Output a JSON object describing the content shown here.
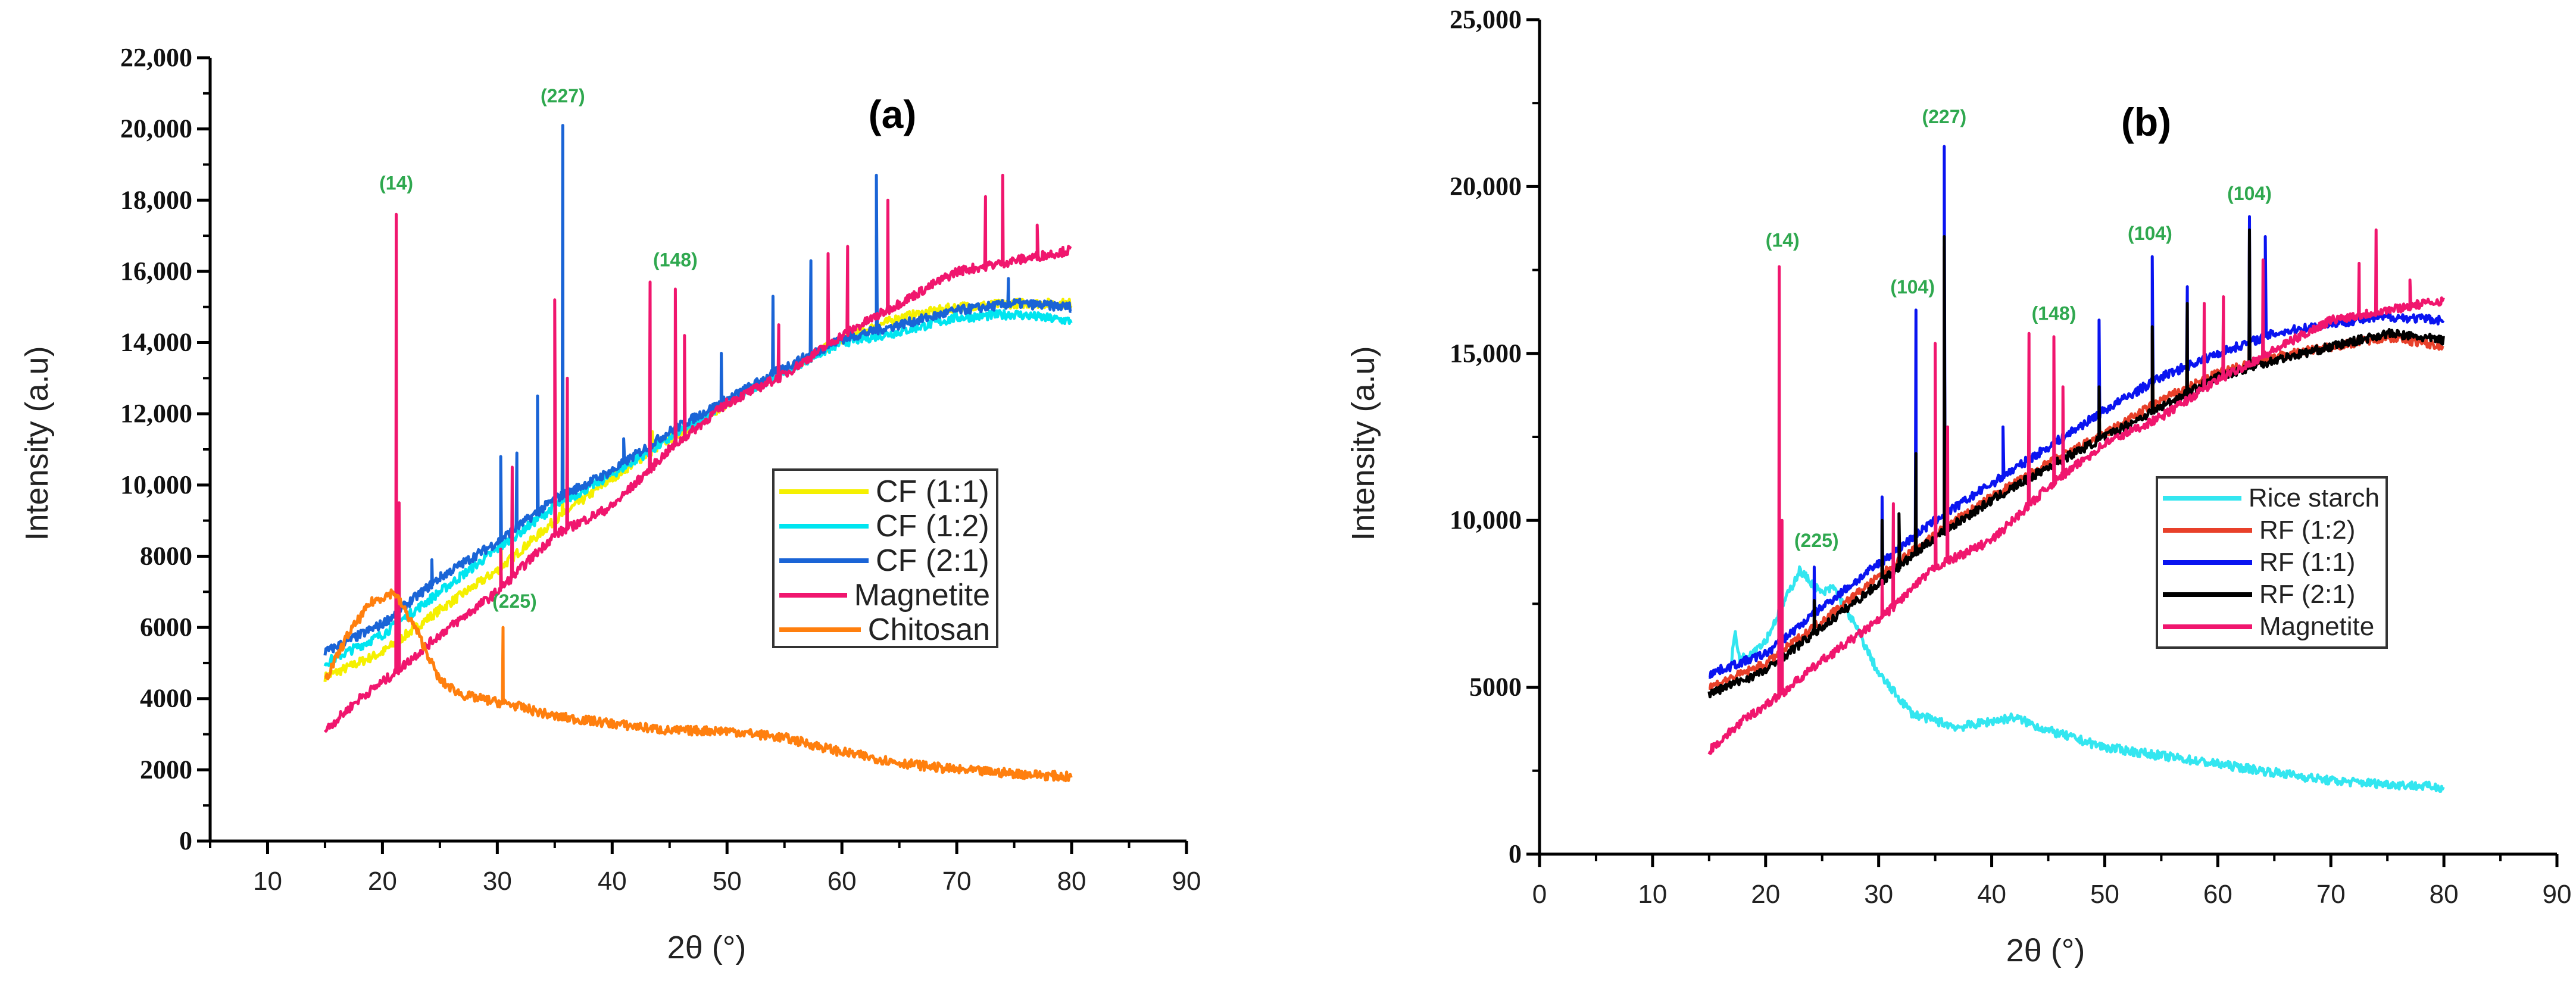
{
  "chart_data": [
    {
      "type": "line",
      "title": "(a)",
      "xlabel": "2θ (°)",
      "ylabel": "Intensity (a.u)",
      "xlim": [
        5,
        90
      ],
      "ylim": [
        0,
        22000
      ],
      "grid": false,
      "legend_placement": "center-right",
      "xticks": [
        10,
        20,
        30,
        40,
        50,
        60,
        70,
        80,
        90
      ],
      "xtick_labels": [
        "10",
        "20",
        "30",
        "40",
        "50",
        "60",
        "70",
        "80",
        "90"
      ],
      "yticks": [
        0,
        2000,
        4000,
        6000,
        8000,
        10000,
        12000,
        14000,
        16000,
        18000,
        20000,
        22000
      ],
      "ytick_labels": [
        "0",
        "2000",
        "4000",
        "6000",
        "8000",
        "10,000",
        "12,000",
        "14,000",
        "16,000",
        "18,000",
        "20,000",
        "22,000"
      ],
      "series": [
        {
          "name": "CF (1:1)",
          "color": "#f5f000",
          "points": [
            [
              15,
              4600
            ],
            [
              20,
              5300
            ],
            [
              25,
              6500
            ],
            [
              30,
              7600
            ],
            [
              35,
              9000
            ],
            [
              40,
              10200
            ],
            [
              45,
              11300
            ],
            [
              50,
              12300
            ],
            [
              55,
              13200
            ],
            [
              60,
              14100
            ],
            [
              65,
              14700
            ],
            [
              70,
              15000
            ],
            [
              75,
              15100
            ],
            [
              80,
              15100
            ]
          ],
          "peaks": [
            [
              30.3,
              9500
            ],
            [
              35.7,
              14000
            ],
            [
              43.5,
              11500
            ],
            [
              63,
              16000
            ]
          ]
        },
        {
          "name": "CF (1:2)",
          "color": "#00e5f0",
          "points": [
            [
              15,
              5000
            ],
            [
              20,
              5800
            ],
            [
              25,
              7000
            ],
            [
              30,
              8200
            ],
            [
              35,
              9400
            ],
            [
              40,
              10300
            ],
            [
              45,
              11300
            ],
            [
              50,
              12300
            ],
            [
              55,
              13200
            ],
            [
              60,
              14000
            ],
            [
              65,
              14300
            ],
            [
              70,
              14700
            ],
            [
              75,
              14800
            ],
            [
              80,
              14600
            ]
          ],
          "peaks": [
            [
              30.3,
              10000
            ],
            [
              35.7,
              15000
            ],
            [
              63,
              17000
            ]
          ]
        },
        {
          "name": "CF (2:1)",
          "color": "#1a64d6",
          "points": [
            [
              15,
              5300
            ],
            [
              20,
              6100
            ],
            [
              25,
              7400
            ],
            [
              30,
              8400
            ],
            [
              35,
              9600
            ],
            [
              40,
              10400
            ],
            [
              45,
              11500
            ],
            [
              50,
              12400
            ],
            [
              55,
              13300
            ],
            [
              60,
              14100
            ],
            [
              65,
              14500
            ],
            [
              70,
              14900
            ],
            [
              75,
              15100
            ],
            [
              80,
              15000
            ]
          ],
          "peaks": [
            [
              24.3,
              7900
            ],
            [
              30.3,
              10800
            ],
            [
              31.7,
              10900
            ],
            [
              33.5,
              12500
            ],
            [
              35.7,
              20100
            ],
            [
              41,
              11300
            ],
            [
              49.5,
              13700
            ],
            [
              54,
              15300
            ],
            [
              57.3,
              16300
            ],
            [
              63,
              18700
            ],
            [
              74.5,
              15800
            ]
          ]
        },
        {
          "name": "Magnetite",
          "color": "#f0166e",
          "points": [
            [
              15,
              3100
            ],
            [
              18,
              4000
            ],
            [
              21,
              4700
            ],
            [
              25,
              5800
            ],
            [
              30,
              7000
            ],
            [
              35,
              8600
            ],
            [
              40,
              9400
            ],
            [
              45,
              11000
            ],
            [
              50,
              12300
            ],
            [
              55,
              13100
            ],
            [
              60,
              14200
            ],
            [
              65,
              15100
            ],
            [
              70,
              16000
            ],
            [
              75,
              16300
            ],
            [
              80,
              16600
            ]
          ],
          "peaks": [
            [
              21.2,
              17600
            ],
            [
              21.45,
              9500
            ],
            [
              30.3,
              8200
            ],
            [
              31.3,
              10500
            ],
            [
              35,
              15200
            ],
            [
              36.1,
              13000
            ],
            [
              43.3,
              15700
            ],
            [
              45.5,
              15500
            ],
            [
              46.3,
              14200
            ],
            [
              54.5,
              14500
            ],
            [
              58.8,
              16500
            ],
            [
              60.5,
              16700
            ],
            [
              64,
              18000
            ],
            [
              72.5,
              18100
            ],
            [
              74,
              18700
            ],
            [
              77,
              17300
            ]
          ]
        },
        {
          "name": "Chitosan",
          "color": "#ff7f0e",
          "points": [
            [
              15,
              4500
            ],
            [
              17,
              5800
            ],
            [
              19,
              6700
            ],
            [
              21,
              7000
            ],
            [
              23,
              5900
            ],
            [
              25,
              4500
            ],
            [
              27,
              4100
            ],
            [
              30,
              3900
            ],
            [
              31,
              3850
            ],
            [
              35,
              3500
            ],
            [
              40,
              3300
            ],
            [
              45,
              3100
            ],
            [
              50,
              3100
            ],
            [
              55,
              2900
            ],
            [
              60,
              2500
            ],
            [
              65,
              2200
            ],
            [
              70,
              2000
            ],
            [
              75,
              1900
            ],
            [
              80,
              1800
            ]
          ],
          "peaks": [
            [
              30.5,
              6000
            ]
          ]
        }
      ],
      "annotations": [
        {
          "text": "(14)",
          "x": 21.2,
          "y": 18300
        },
        {
          "text": "(227)",
          "x": 35.7,
          "y": 20750
        },
        {
          "text": "(148)",
          "x": 45.5,
          "y": 16140
        },
        {
          "text": "(225)",
          "x": 31.5,
          "y": 6550
        }
      ]
    },
    {
      "type": "line",
      "title": "(b)",
      "xlabel": "2θ (°)",
      "ylabel": "Intensity  (a.u)",
      "xlim": [
        0,
        90
      ],
      "ylim": [
        0,
        25000
      ],
      "grid": false,
      "legend_placement": "center-right",
      "xticks": [
        0,
        10,
        20,
        30,
        40,
        50,
        60,
        70,
        80,
        90
      ],
      "xtick_labels": [
        "0",
        "10",
        "20",
        "30",
        "40",
        "50",
        "60",
        "70",
        "80",
        "90"
      ],
      "yticks": [
        0,
        5000,
        10000,
        15000,
        20000,
        25000
      ],
      "ytick_labels": [
        "0",
        "5000",
        "10,000",
        "15,000",
        "20,000",
        "25,000"
      ],
      "series": [
        {
          "name": "Rice starch",
          "color": "#33e6f0",
          "points": [
            [
              17,
              5800
            ],
            [
              17.3,
              6700
            ],
            [
              17.7,
              5800
            ],
            [
              20,
              6400
            ],
            [
              23,
              8500
            ],
            [
              25,
              7800
            ],
            [
              26,
              8000
            ],
            [
              28,
              6800
            ],
            [
              30,
              5400
            ],
            [
              33,
              4200
            ],
            [
              37,
              3800
            ],
            [
              42,
              4100
            ],
            [
              45,
              3700
            ],
            [
              50,
              3200
            ],
            [
              60,
              2700
            ],
            [
              70,
              2200
            ],
            [
              80,
              2000
            ]
          ],
          "peaks": []
        },
        {
          "name": "RF (1:2)",
          "color": "#e8402a",
          "points": [
            [
              15,
              5000
            ],
            [
              20,
              5700
            ],
            [
              25,
              7000
            ],
            [
              30,
              8300
            ],
            [
              35,
              9600
            ],
            [
              40,
              10700
            ],
            [
              45,
              11700
            ],
            [
              50,
              12600
            ],
            [
              55,
              13600
            ],
            [
              60,
              14400
            ],
            [
              65,
              14900
            ],
            [
              70,
              15200
            ],
            [
              75,
              15500
            ],
            [
              80,
              15200
            ]
          ],
          "peaks": [
            [
              30.3,
              9900
            ],
            [
              33.3,
              11800
            ],
            [
              35.8,
              18200
            ],
            [
              54.2,
              15600
            ],
            [
              57.3,
              16300
            ],
            [
              62.8,
              18500
            ]
          ]
        },
        {
          "name": "RF (1:1)",
          "color": "#0a14f0",
          "points": [
            [
              15,
              5400
            ],
            [
              20,
              6000
            ],
            [
              25,
              7400
            ],
            [
              30,
              8700
            ],
            [
              35,
              10000
            ],
            [
              40,
              11100
            ],
            [
              45,
              12200
            ],
            [
              50,
              13300
            ],
            [
              55,
              14300
            ],
            [
              60,
              15000
            ],
            [
              65,
              15600
            ],
            [
              70,
              15900
            ],
            [
              75,
              16100
            ],
            [
              80,
              16000
            ]
          ],
          "peaks": [
            [
              24.3,
              8600
            ],
            [
              30.3,
              10700
            ],
            [
              33.3,
              16300
            ],
            [
              35.8,
              21200
            ],
            [
              41,
              12800
            ],
            [
              49.5,
              16000
            ],
            [
              54.2,
              17900
            ],
            [
              57.3,
              17000
            ],
            [
              62.8,
              19100
            ],
            [
              64.2,
              18500
            ]
          ]
        },
        {
          "name": "RF (2:1)",
          "color": "#000000",
          "points": [
            [
              15,
              4800
            ],
            [
              20,
              5500
            ],
            [
              25,
              6800
            ],
            [
              30,
              8100
            ],
            [
              35,
              9500
            ],
            [
              40,
              10600
            ],
            [
              45,
              11600
            ],
            [
              50,
              12500
            ],
            [
              55,
              13400
            ],
            [
              60,
              14300
            ],
            [
              65,
              14800
            ],
            [
              70,
              15200
            ],
            [
              75,
              15600
            ],
            [
              80,
              15400
            ]
          ],
          "peaks": [
            [
              24.3,
              7600
            ],
            [
              30.3,
              10000
            ],
            [
              31.8,
              10200
            ],
            [
              33.3,
              12000
            ],
            [
              35.8,
              18500
            ],
            [
              49.5,
              14000
            ],
            [
              54.2,
              15800
            ],
            [
              57.3,
              16500
            ],
            [
              62.8,
              18700
            ]
          ]
        },
        {
          "name": "Magnetite",
          "color": "#f0166e",
          "points": [
            [
              15,
              3100
            ],
            [
              18,
              4000
            ],
            [
              21,
              4700
            ],
            [
              25,
              5800
            ],
            [
              30,
              7000
            ],
            [
              35,
              8600
            ],
            [
              40,
              9400
            ],
            [
              45,
              11000
            ],
            [
              50,
              12300
            ],
            [
              55,
              13100
            ],
            [
              60,
              14200
            ],
            [
              65,
              15100
            ],
            [
              70,
              16000
            ],
            [
              75,
              16300
            ],
            [
              80,
              16600
            ]
          ],
          "peaks": [
            [
              21.2,
              17600
            ],
            [
              21.45,
              10000
            ],
            [
              30.3,
              8200
            ],
            [
              31.3,
              10500
            ],
            [
              35,
              15300
            ],
            [
              36.1,
              12800
            ],
            [
              43.3,
              15600
            ],
            [
              45.5,
              15500
            ],
            [
              46.3,
              14000
            ],
            [
              58.8,
              16500
            ],
            [
              60.5,
              16700
            ],
            [
              64,
              17800
            ],
            [
              72.5,
              17700
            ],
            [
              74,
              18700
            ],
            [
              77,
              17200
            ]
          ]
        }
      ],
      "annotations": [
        {
          "text": "(14)",
          "x": 21.5,
          "y": 18200
        },
        {
          "text": "(225)",
          "x": 24.5,
          "y": 9200
        },
        {
          "text": "(104)",
          "x": 33,
          "y": 16800
        },
        {
          "text": "(227)",
          "x": 35.8,
          "y": 21900
        },
        {
          "text": "(148)",
          "x": 45.5,
          "y": 16000
        },
        {
          "text": "(104)",
          "x": 54,
          "y": 18400
        },
        {
          "text": "(104)",
          "x": 62.8,
          "y": 19600
        }
      ]
    }
  ]
}
